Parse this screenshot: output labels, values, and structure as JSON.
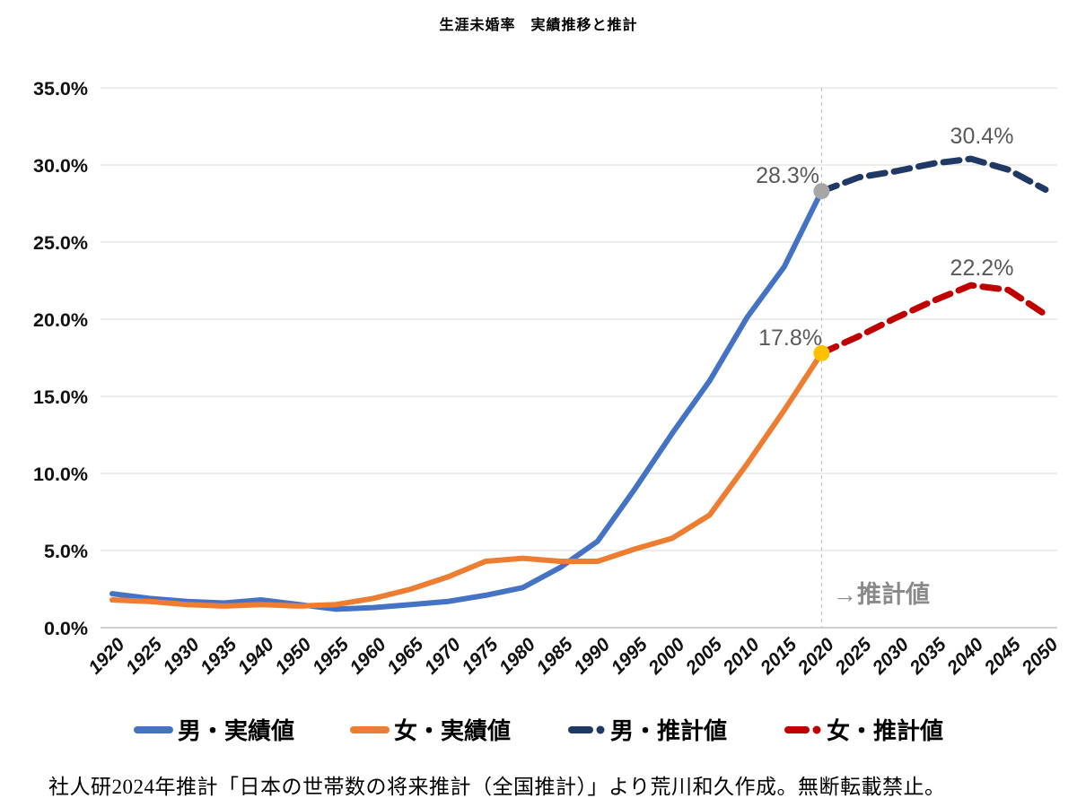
{
  "title": "生涯未婚率　実績推移と推計",
  "annotations": {
    "men_2020": "28.3%",
    "men_peak": "30.4%",
    "women_2020": "17.8%",
    "women_peak": "22.2%"
  },
  "estimate_label": "→推計値",
  "footer": "社人研2024年推計「日本の世帯数の将来推計（全国推計）」より荒川和久作成。無断転載禁止。",
  "legend": {
    "items": [
      {
        "name": "men-actual",
        "label": "男・実績値",
        "color": "#4472C4",
        "style": "solid"
      },
      {
        "name": "women-actual",
        "label": "女・実績値",
        "color": "#ED7D31",
        "style": "solid"
      },
      {
        "name": "men-forecast",
        "label": "男・推計値",
        "color": "#1F3864",
        "style": "dash"
      },
      {
        "name": "women-forecast",
        "label": "女・推計値",
        "color": "#C00000",
        "style": "dash"
      }
    ]
  },
  "chart_data": {
    "type": "line",
    "title": "生涯未婚率　実績推移と推計",
    "categories": [
      "1920",
      "1925",
      "1930",
      "1935",
      "1940",
      "1950",
      "1955",
      "1960",
      "1965",
      "1970",
      "1975",
      "1980",
      "1985",
      "1990",
      "1995",
      "2000",
      "2005",
      "2010",
      "2015",
      "2020",
      "2025",
      "2030",
      "2035",
      "2040",
      "2045",
      "2050"
    ],
    "y_ticks": [
      "0.0%",
      "5.0%",
      "10.0%",
      "15.0%",
      "20.0%",
      "25.0%",
      "30.0%",
      "35.0%"
    ],
    "ylim": [
      0,
      35
    ],
    "grid": true,
    "legend_position": "bottom",
    "divider_category": "2020",
    "series": [
      {
        "name": "男・実績値",
        "color": "#4472C4",
        "style": "solid",
        "start_index": 0,
        "values": [
          2.2,
          1.9,
          1.7,
          1.6,
          1.8,
          1.5,
          1.2,
          1.3,
          1.5,
          1.7,
          2.1,
          2.6,
          3.9,
          5.6,
          9.0,
          12.6,
          16.0,
          20.1,
          23.4,
          28.3
        ]
      },
      {
        "name": "女・実績値",
        "color": "#ED7D31",
        "style": "solid",
        "start_index": 0,
        "values": [
          1.8,
          1.7,
          1.5,
          1.4,
          1.5,
          1.4,
          1.5,
          1.9,
          2.5,
          3.3,
          4.3,
          4.5,
          4.3,
          4.3,
          5.1,
          5.8,
          7.3,
          10.6,
          14.1,
          17.8
        ]
      },
      {
        "name": "男・推計値",
        "color": "#1F3864",
        "style": "dash",
        "start_index": 19,
        "values": [
          28.3,
          29.2,
          29.6,
          30.1,
          30.4,
          29.7,
          28.4
        ]
      },
      {
        "name": "女・推計値",
        "color": "#C00000",
        "style": "dash",
        "start_index": 19,
        "values": [
          17.8,
          18.9,
          20.1,
          21.2,
          22.2,
          21.9,
          20.3
        ]
      }
    ],
    "markers": [
      {
        "category": "2020",
        "value": 28.3,
        "color": "#A6A6A6",
        "label": "28.3%"
      },
      {
        "category": "2020",
        "value": 17.8,
        "color": "#FFC000",
        "label": "17.8%"
      }
    ],
    "annotated_points": [
      {
        "category": "2040",
        "series": "男・推計値",
        "label": "30.4%"
      },
      {
        "category": "2040",
        "series": "女・推計値",
        "label": "22.2%"
      }
    ]
  }
}
